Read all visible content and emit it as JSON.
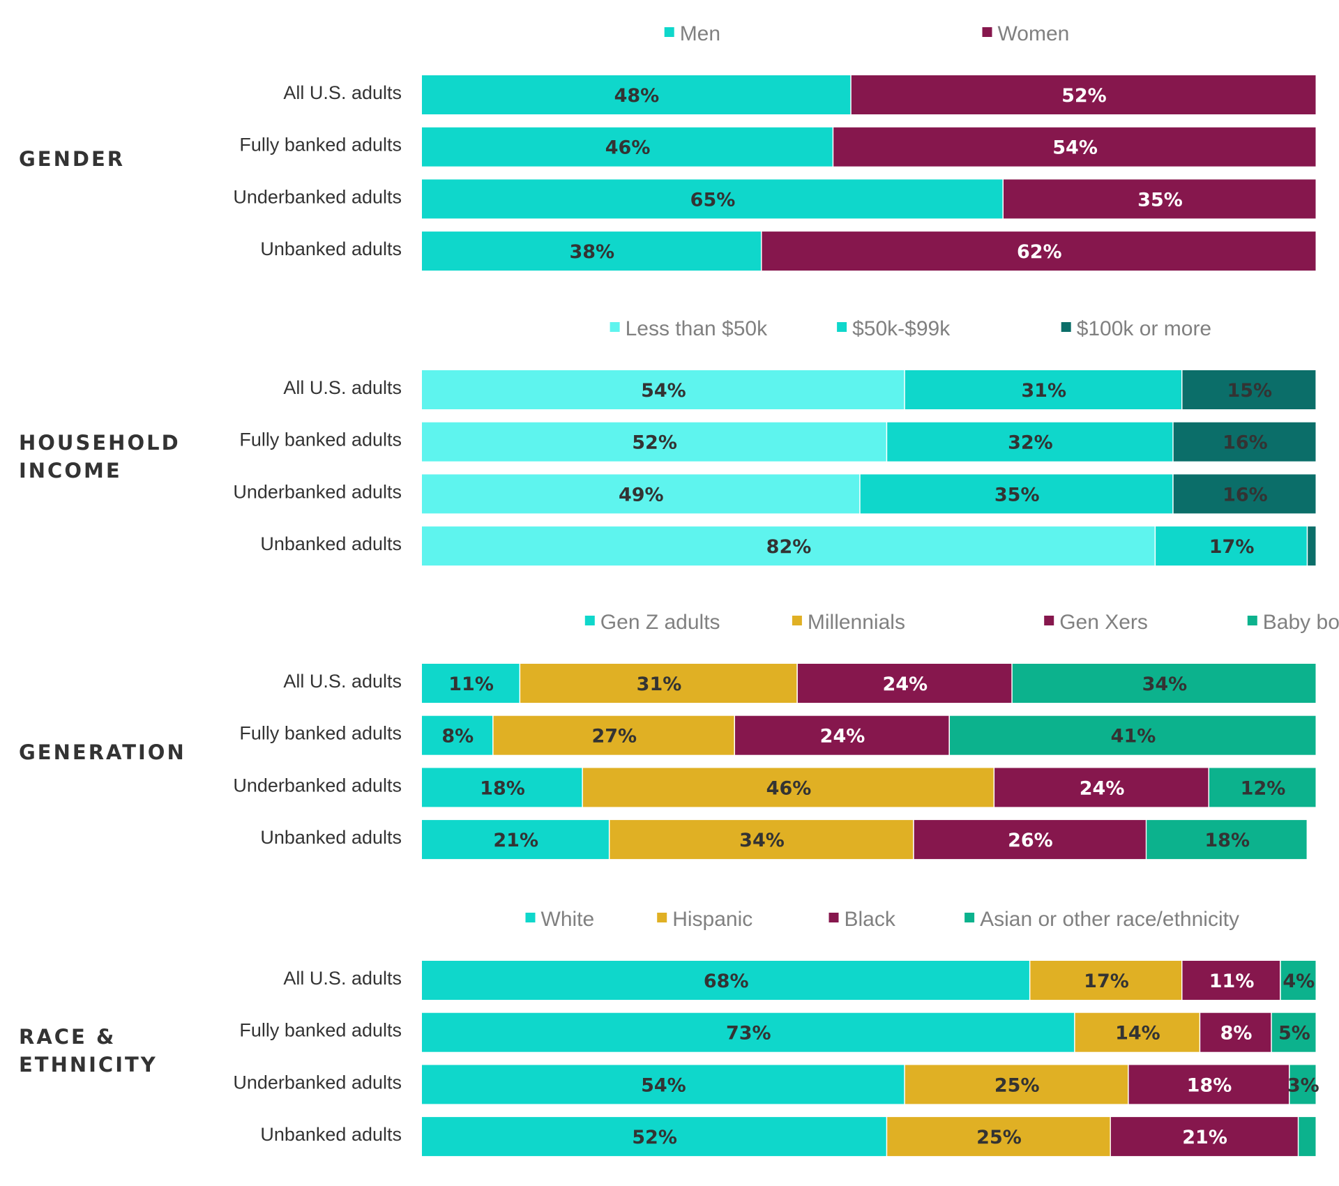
{
  "colors": {
    "men": "#0fd7cb",
    "women": "#86174d",
    "income_low": "#5ef4ee",
    "income_mid": "#0fd7cb",
    "income_high": "#0b6e69",
    "gen_z": "#0fd7cb",
    "millennials": "#e0b024",
    "gen_x": "#86174d",
    "boomers": "#0cb28d",
    "white": "#0fd7cb",
    "hispanic": "#e0b024",
    "black": "#86174d",
    "asian_other": "#0cb28d",
    "label_dark": "#333333",
    "label_light": "#ffffff"
  },
  "chart_data": [
    {
      "type": "bar",
      "orientation": "horizontal",
      "stacked": true,
      "title": "GENDER",
      "categories": [
        "All U.S. adults",
        "Fully banked adults",
        "Underbanked adults",
        "Unbanked adults"
      ],
      "series": [
        {
          "name": "Men",
          "values": [
            48,
            46,
            65,
            38
          ],
          "labels": [
            "48%",
            "46%",
            "65%",
            "38%"
          ]
        },
        {
          "name": "Women",
          "values": [
            52,
            54,
            35,
            62
          ],
          "labels": [
            "52%",
            "54%",
            "35%",
            "62%"
          ]
        }
      ],
      "xlim": [
        0,
        100
      ]
    },
    {
      "type": "bar",
      "orientation": "horizontal",
      "stacked": true,
      "title": "HOUSEHOLD INCOME",
      "categories": [
        "All U.S. adults",
        "Fully banked adults",
        "Underbanked adults",
        "Unbanked adults"
      ],
      "series": [
        {
          "name": "Less than $50k",
          "values": [
            54,
            52,
            49,
            82
          ],
          "labels": [
            "54%",
            "52%",
            "49%",
            "82%"
          ]
        },
        {
          "name": "$50k-$99k",
          "values": [
            31,
            32,
            35,
            17
          ],
          "labels": [
            "31%",
            "32%",
            "35%",
            "17%"
          ]
        },
        {
          "name": "$100k or more",
          "values": [
            15,
            16,
            16,
            1
          ],
          "labels": [
            "15%",
            "16%",
            "16%",
            ""
          ]
        }
      ],
      "xlim": [
        0,
        100
      ]
    },
    {
      "type": "bar",
      "orientation": "horizontal",
      "stacked": true,
      "title": "GENERATION",
      "categories": [
        "All U.S. adults",
        "Fully banked adults",
        "Underbanked adults",
        "Unbanked adults"
      ],
      "series": [
        {
          "name": "Gen Z adults",
          "values": [
            11,
            8,
            18,
            21
          ],
          "labels": [
            "11%",
            "8%",
            "18%",
            "21%"
          ]
        },
        {
          "name": "Millennials",
          "values": [
            31,
            27,
            46,
            34
          ],
          "labels": [
            "31%",
            "27%",
            "46%",
            "34%"
          ]
        },
        {
          "name": "Gen Xers",
          "values": [
            24,
            24,
            24,
            26
          ],
          "labels": [
            "24%",
            "24%",
            "24%",
            "26%"
          ]
        },
        {
          "name": "Baby boomers",
          "values": [
            34,
            41,
            12,
            18
          ],
          "labels": [
            "34%",
            "41%",
            "12%",
            "18%"
          ]
        }
      ],
      "xlim": [
        0,
        100
      ]
    },
    {
      "type": "bar",
      "orientation": "horizontal",
      "stacked": true,
      "title": "RACE & ETHNICITY",
      "categories": [
        "All U.S. adults",
        "Fully banked adults",
        "Underbanked adults",
        "Unbanked adults"
      ],
      "series": [
        {
          "name": "White",
          "values": [
            68,
            73,
            54,
            52
          ],
          "labels": [
            "68%",
            "73%",
            "54%",
            "52%"
          ]
        },
        {
          "name": "Hispanic",
          "values": [
            17,
            14,
            25,
            25
          ],
          "labels": [
            "17%",
            "14%",
            "25%",
            "25%"
          ]
        },
        {
          "name": "Black",
          "values": [
            11,
            8,
            18,
            21
          ],
          "labels": [
            "11%",
            "8%",
            "18%",
            "21%"
          ]
        },
        {
          "name": "Asian or other race/ethnicity",
          "values": [
            4,
            5,
            3,
            2
          ],
          "labels": [
            "4%",
            "5%",
            "3%",
            ""
          ]
        }
      ],
      "xlim": [
        0,
        100
      ]
    }
  ]
}
